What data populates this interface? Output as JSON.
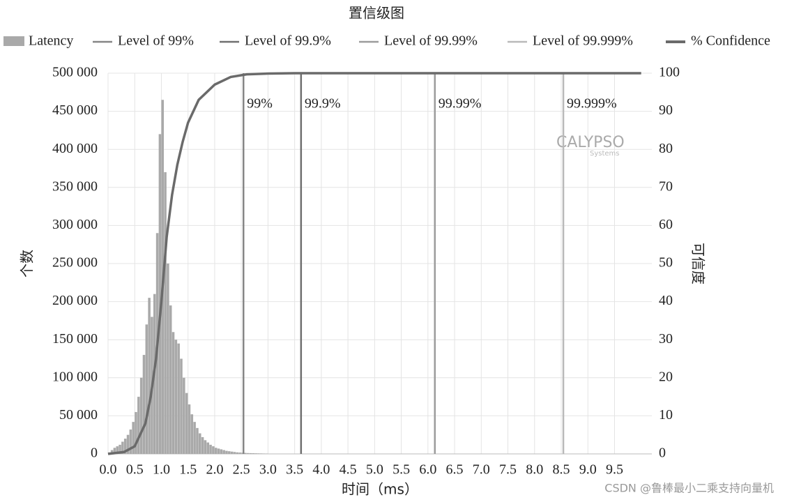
{
  "chart_data": {
    "type": "histogram",
    "title": "置信级图",
    "x_label": "时间（ms）",
    "y_label": "个数",
    "y2_label": "可信度",
    "grid": true,
    "xlim": [
      0,
      10.2
    ],
    "xticks": [
      {
        "value": 0,
        "label": "0.0"
      },
      0.5,
      {
        "value": 1,
        "label": "1.0"
      },
      1.5,
      {
        "value": 2,
        "label": "2.0"
      },
      2.5,
      {
        "value": 3,
        "label": "3.0"
      },
      3.5,
      {
        "value": 4,
        "label": "4.0"
      },
      4.5,
      {
        "value": 5,
        "label": "5.0"
      },
      5.5,
      {
        "value": 6,
        "label": "6.0"
      },
      6.5,
      {
        "value": 7,
        "label": "7.0"
      },
      7.5,
      {
        "value": 8,
        "label": "8.0"
      },
      8.5,
      {
        "value": 9,
        "label": "9.0"
      },
      9.5
    ],
    "ylim": [
      0,
      500000
    ],
    "yticks": [
      0,
      {
        "value": 50000,
        "label": "50 000"
      },
      {
        "value": 100000,
        "label": "100 000"
      },
      {
        "value": 150000,
        "label": "150 000"
      },
      {
        "value": 200000,
        "label": "200 000"
      },
      {
        "value": 250000,
        "label": "250 000"
      },
      {
        "value": 300000,
        "label": "300 000"
      },
      {
        "value": 350000,
        "label": "350 000"
      },
      {
        "value": 400000,
        "label": "400 000"
      },
      {
        "value": 450000,
        "label": "450 000"
      },
      {
        "value": 500000,
        "label": "500 000"
      }
    ],
    "y2lim": [
      0,
      100
    ],
    "y2ticks": [
      0,
      10,
      20,
      30,
      40,
      50,
      60,
      70,
      80,
      90,
      100
    ],
    "histogram": {
      "name": "Latency",
      "color": "#a9a9a9",
      "bins": [
        0,
        0.05,
        0.1,
        0.15,
        0.2,
        0.25,
        0.3,
        0.35,
        0.4,
        0.45,
        0.5,
        0.55,
        0.6,
        0.65,
        0.7,
        0.75,
        0.8,
        0.85,
        0.9,
        0.95,
        1,
        1.05,
        1.1,
        1.15,
        1.2,
        1.25,
        1.3,
        1.35,
        1.4,
        1.45,
        1.5,
        1.55,
        1.6,
        1.65,
        1.7,
        1.75,
        1.8,
        1.85,
        1.9,
        1.95,
        2,
        2.05,
        2.1,
        2.15,
        2.2,
        2.25,
        2.3,
        2.35,
        2.4,
        2.45,
        2.5,
        2.55,
        2.6,
        2.65,
        2.7,
        2.75,
        2.8,
        2.85,
        2.9,
        2.95,
        3
      ],
      "values": [
        2000,
        5000,
        8000,
        10000,
        12000,
        16000,
        20000,
        25000,
        32000,
        42000,
        55000,
        75000,
        100000,
        130000,
        170000,
        205000,
        180000,
        210000,
        290000,
        420000,
        465000,
        370000,
        250000,
        195000,
        160000,
        150000,
        145000,
        125000,
        100000,
        80000,
        65000,
        52000,
        42000,
        34000,
        27000,
        22000,
        18000,
        15000,
        12000,
        10000,
        8000,
        7000,
        6000,
        5000,
        4000,
        3500,
        3000,
        2500,
        2000,
        1800,
        1500,
        1300,
        1100,
        1000,
        900,
        800,
        700,
        600,
        500,
        400
      ]
    },
    "levels": [
      {
        "name": "Level of 99%",
        "label": "99%",
        "x": 2.54,
        "color": "#858585"
      },
      {
        "name": "Level of 99.9%",
        "label": "99.9%",
        "x": 3.62,
        "color": "#6f6f6f"
      },
      {
        "name": "Level of 99.99%",
        "label": "99.99%",
        "x": 6.13,
        "color": "#9c9c9c"
      },
      {
        "name": "Level of 99.999%",
        "label": "99.999%",
        "x": 8.54,
        "color": "#b9b9b9"
      }
    ],
    "confidence": {
      "name": "% Confidence",
      "color": "#6a6a6a",
      "axis": "y2",
      "x": [
        0,
        0.3,
        0.5,
        0.7,
        0.8,
        0.9,
        1.0,
        1.1,
        1.2,
        1.3,
        1.4,
        1.5,
        1.7,
        2.0,
        2.3,
        2.6,
        3.0,
        3.5,
        10
      ],
      "values": [
        0,
        0.5,
        2,
        8,
        15,
        25,
        40,
        57,
        68,
        76,
        82,
        87,
        93,
        97,
        99,
        99.7,
        99.9,
        100,
        100
      ]
    },
    "watermark": [
      "CALYPSO",
      "Systems"
    ],
    "credit": "CSDN @鲁棒最小二乘支持向量机"
  }
}
